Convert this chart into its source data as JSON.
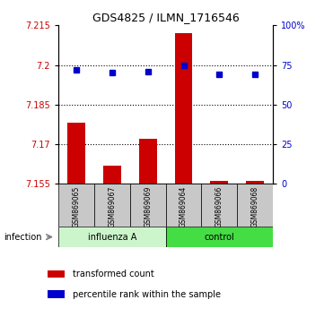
{
  "title": "GDS4825 / ILMN_1716546",
  "samples": [
    "GSM869065",
    "GSM869067",
    "GSM869069",
    "GSM869064",
    "GSM869066",
    "GSM869068"
  ],
  "group_labels": [
    "influenza A",
    "control"
  ],
  "bar_values": [
    7.178,
    7.162,
    7.172,
    7.212,
    7.156,
    7.156
  ],
  "bar_baseline": 7.155,
  "percentile_values": [
    72,
    70,
    71,
    75,
    69,
    69
  ],
  "ylim_left": [
    7.155,
    7.215
  ],
  "ylim_right": [
    0,
    100
  ],
  "yticks_left": [
    7.155,
    7.17,
    7.185,
    7.2,
    7.215
  ],
  "yticks_right": [
    0,
    25,
    50,
    75,
    100
  ],
  "ytick_labels_right": [
    "0",
    "25",
    "50",
    "75",
    "100%"
  ],
  "left_color": "#cc0000",
  "right_color": "#0000cc",
  "bar_color": "#cc0000",
  "dot_color": "#0000cc",
  "group_box_color": "#c8c8c8",
  "influenza_color": "#ccf5cc",
  "control_color": "#44dd44",
  "infection_label": "infection",
  "legend_bar_label": "transformed count",
  "legend_dot_label": "percentile rank within the sample"
}
